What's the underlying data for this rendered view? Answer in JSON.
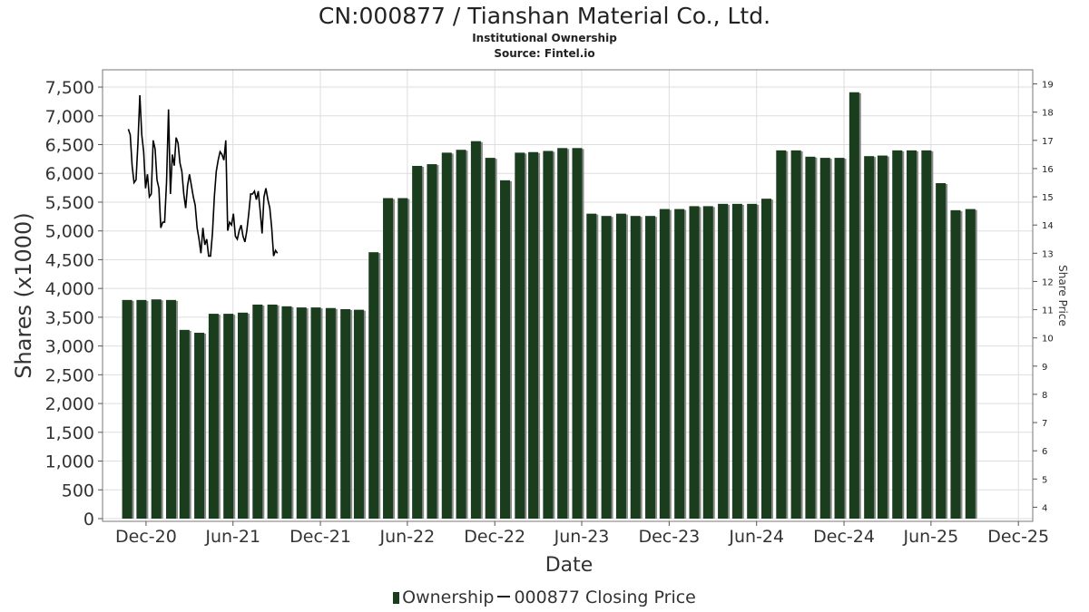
{
  "header": {
    "title": "CN:000877 / Tianshan Material Co., Ltd.",
    "subtitle1": "Institutional Ownership",
    "subtitle2": "Source: Fintel.io"
  },
  "legend": {
    "ownership_label": "Ownership",
    "price_label": "000877 Closing Price"
  },
  "colors": {
    "bar": "#1a3d1e",
    "bar_shadow": "#8a8a8a",
    "line": "#000000",
    "grid": "#dddddd"
  },
  "chart_data": {
    "type": "bar",
    "xlabel": "Date",
    "ylabel": "Shares (x1000)",
    "y2label": "Share Price",
    "grid": true,
    "legend_position": "bottom",
    "x_ticks": [
      "Dec-20",
      "Jun-21",
      "Dec-21",
      "Jun-22",
      "Dec-22",
      "Jun-23",
      "Dec-23",
      "Jun-24",
      "Dec-24",
      "Jun-25",
      "Dec-25"
    ],
    "x_range": [
      "2020-09-01",
      "2025-12-31"
    ],
    "ylim": [
      0,
      7800
    ],
    "y_ticks": [
      0,
      500,
      1000,
      1500,
      2000,
      2500,
      3000,
      3500,
      4000,
      4500,
      5000,
      5500,
      6000,
      6500,
      7000,
      7500
    ],
    "y2lim": [
      3.5,
      19.5
    ],
    "y2_ticks": [
      4,
      5,
      6,
      7,
      8,
      9,
      10,
      11,
      12,
      13,
      14,
      15,
      16,
      17,
      18,
      19
    ],
    "series": [
      {
        "name": "Ownership",
        "kind": "bar",
        "points": [
          [
            "2020-10-31",
            3800
          ],
          [
            "2020-11-30",
            3800
          ],
          [
            "2020-12-31",
            3810
          ],
          [
            "2021-01-31",
            3800
          ],
          [
            "2021-02-28",
            3280
          ],
          [
            "2021-03-31",
            3230
          ],
          [
            "2021-04-30",
            3560
          ],
          [
            "2021-05-31",
            3560
          ],
          [
            "2021-06-30",
            3580
          ],
          [
            "2021-07-31",
            3720
          ],
          [
            "2021-08-31",
            3720
          ],
          [
            "2021-09-30",
            3690
          ],
          [
            "2021-10-31",
            3670
          ],
          [
            "2021-11-30",
            3670
          ],
          [
            "2021-12-31",
            3660
          ],
          [
            "2022-01-31",
            3640
          ],
          [
            "2022-02-28",
            3630
          ],
          [
            "2022-03-31",
            4630
          ],
          [
            "2022-04-30",
            5570
          ],
          [
            "2022-05-31",
            5570
          ],
          [
            "2022-06-30",
            6130
          ],
          [
            "2022-07-31",
            6160
          ],
          [
            "2022-08-31",
            6360
          ],
          [
            "2022-09-30",
            6410
          ],
          [
            "2022-10-31",
            6560
          ],
          [
            "2022-11-30",
            6270
          ],
          [
            "2022-12-31",
            5880
          ],
          [
            "2023-01-31",
            6360
          ],
          [
            "2023-02-28",
            6370
          ],
          [
            "2023-03-31",
            6390
          ],
          [
            "2023-04-30",
            6440
          ],
          [
            "2023-05-31",
            6440
          ],
          [
            "2023-06-30",
            5300
          ],
          [
            "2023-07-31",
            5260
          ],
          [
            "2023-08-31",
            5300
          ],
          [
            "2023-09-30",
            5260
          ],
          [
            "2023-10-31",
            5260
          ],
          [
            "2023-11-30",
            5380
          ],
          [
            "2023-12-31",
            5380
          ],
          [
            "2024-01-31",
            5430
          ],
          [
            "2024-02-29",
            5430
          ],
          [
            "2024-03-31",
            5470
          ],
          [
            "2024-04-30",
            5470
          ],
          [
            "2024-05-31",
            5470
          ],
          [
            "2024-06-30",
            5560
          ],
          [
            "2024-07-31",
            6400
          ],
          [
            "2024-08-31",
            6400
          ],
          [
            "2024-09-30",
            6290
          ],
          [
            "2024-10-31",
            6270
          ],
          [
            "2024-11-30",
            6270
          ],
          [
            "2024-12-31",
            7410
          ],
          [
            "2025-01-31",
            6300
          ],
          [
            "2025-02-28",
            6310
          ],
          [
            "2025-03-31",
            6400
          ],
          [
            "2025-04-30",
            6400
          ],
          [
            "2025-05-31",
            6400
          ],
          [
            "2025-06-30",
            5830
          ],
          [
            "2025-07-31",
            5360
          ],
          [
            "2025-08-31",
            5380
          ]
        ]
      },
      {
        "name": "000877 Closing Price",
        "kind": "line",
        "axis": "right",
        "points": [
          [
            "2020-10-25",
            17.4
          ],
          [
            "2020-10-29",
            17.2
          ],
          [
            "2020-11-02",
            16.1
          ],
          [
            "2020-11-06",
            15.5
          ],
          [
            "2020-11-10",
            15.6
          ],
          [
            "2020-11-14",
            16.9
          ],
          [
            "2020-11-18",
            18.6
          ],
          [
            "2020-11-22",
            17.2
          ],
          [
            "2020-11-26",
            16.6
          ],
          [
            "2020-11-30",
            15.3
          ],
          [
            "2020-12-04",
            15.8
          ],
          [
            "2020-12-08",
            15.0
          ],
          [
            "2020-12-12",
            15.1
          ],
          [
            "2020-12-16",
            17.0
          ],
          [
            "2020-12-20",
            16.7
          ],
          [
            "2020-12-24",
            15.6
          ],
          [
            "2020-12-28",
            15.3
          ],
          [
            "2021-01-01",
            13.9
          ],
          [
            "2021-01-05",
            14.1
          ],
          [
            "2021-01-09",
            14.1
          ],
          [
            "2021-01-13",
            15.5
          ],
          [
            "2021-01-17",
            18.1
          ],
          [
            "2021-01-21",
            15.1
          ],
          [
            "2021-01-25",
            16.5
          ],
          [
            "2021-01-29",
            16.1
          ],
          [
            "2021-02-02",
            17.1
          ],
          [
            "2021-02-06",
            16.9
          ],
          [
            "2021-02-10",
            16.2
          ],
          [
            "2021-02-14",
            15.9
          ],
          [
            "2021-02-18",
            15.1
          ],
          [
            "2021-02-22",
            14.6
          ],
          [
            "2021-02-26",
            15.4
          ],
          [
            "2021-03-02",
            15.8
          ],
          [
            "2021-03-06",
            15.4
          ],
          [
            "2021-03-10",
            15.0
          ],
          [
            "2021-03-14",
            14.7
          ],
          [
            "2021-03-18",
            13.9
          ],
          [
            "2021-03-22",
            13.5
          ],
          [
            "2021-03-26",
            13.0
          ],
          [
            "2021-03-30",
            13.9
          ],
          [
            "2021-04-03",
            13.3
          ],
          [
            "2021-04-07",
            13.5
          ],
          [
            "2021-04-11",
            12.9
          ],
          [
            "2021-04-15",
            12.9
          ],
          [
            "2021-04-19",
            13.7
          ],
          [
            "2021-04-23",
            15.0
          ],
          [
            "2021-04-27",
            15.9
          ],
          [
            "2021-05-01",
            16.3
          ],
          [
            "2021-05-05",
            16.6
          ],
          [
            "2021-05-09",
            16.5
          ],
          [
            "2021-05-13",
            16.3
          ],
          [
            "2021-05-17",
            17.0
          ],
          [
            "2021-05-21",
            13.8
          ],
          [
            "2021-05-25",
            14.1
          ],
          [
            "2021-05-29",
            14.0
          ],
          [
            "2021-06-02",
            14.4
          ],
          [
            "2021-06-06",
            13.6
          ],
          [
            "2021-06-10",
            13.5
          ],
          [
            "2021-06-14",
            13.8
          ],
          [
            "2021-06-18",
            14.0
          ],
          [
            "2021-06-22",
            13.6
          ],
          [
            "2021-06-26",
            13.4
          ],
          [
            "2021-06-30",
            13.8
          ],
          [
            "2021-07-04",
            14.4
          ],
          [
            "2021-07-08",
            15.1
          ],
          [
            "2021-07-12",
            15.1
          ],
          [
            "2021-07-16",
            15.2
          ],
          [
            "2021-07-20",
            14.9
          ],
          [
            "2021-07-24",
            15.2
          ],
          [
            "2021-07-28",
            14.5
          ],
          [
            "2021-08-01",
            13.7
          ],
          [
            "2021-08-05",
            15.0
          ],
          [
            "2021-08-09",
            15.3
          ],
          [
            "2021-08-13",
            14.9
          ],
          [
            "2021-08-17",
            14.6
          ],
          [
            "2021-08-21",
            13.9
          ],
          [
            "2021-08-25",
            12.9
          ],
          [
            "2021-08-29",
            13.1
          ],
          [
            "2021-09-02",
            13.0
          ]
        ]
      }
    ]
  }
}
